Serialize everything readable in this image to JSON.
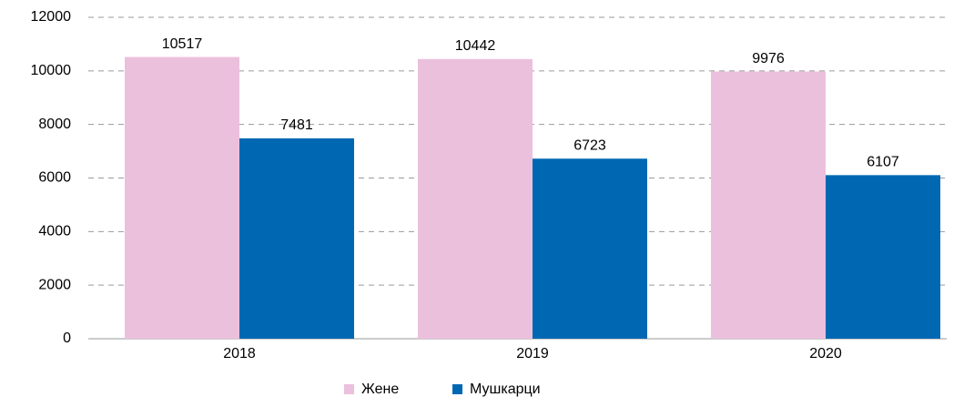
{
  "chart_data": {
    "type": "bar",
    "categories": [
      "2018",
      "2019",
      "2020"
    ],
    "series": [
      {
        "name": "Жене",
        "color": "#ebc0dd",
        "values": [
          10517,
          10442,
          9976
        ]
      },
      {
        "name": "Мушкарци",
        "color": "#0068b3",
        "values": [
          7481,
          6723,
          6107
        ]
      }
    ],
    "ylim": [
      0,
      12000
    ],
    "yticks": [
      0,
      2000,
      4000,
      6000,
      8000,
      10000,
      12000
    ],
    "grid": true,
    "legend": "bottom"
  }
}
